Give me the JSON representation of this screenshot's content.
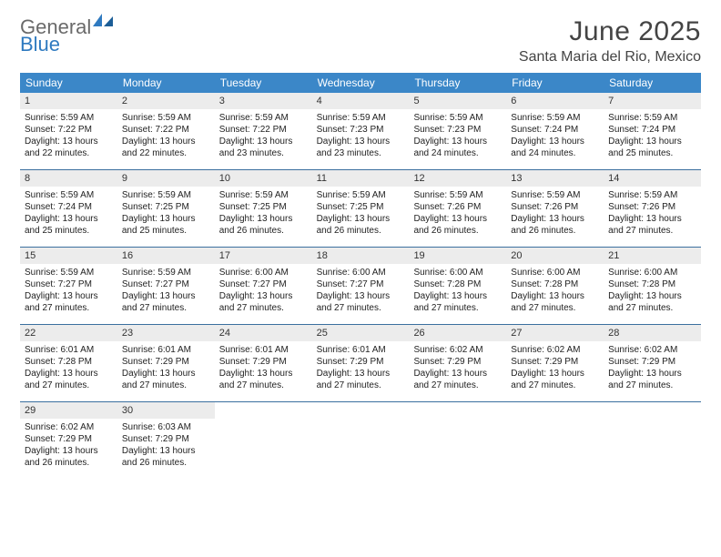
{
  "brand": {
    "general": "General",
    "blue": "Blue"
  },
  "title": "June 2025",
  "location": "Santa Maria del Rio, Mexico",
  "dayNames": [
    "Sunday",
    "Monday",
    "Tuesday",
    "Wednesday",
    "Thursday",
    "Friday",
    "Saturday"
  ],
  "colors": {
    "headerBg": "#3b87c8",
    "weekBorder": "#3b6f9f",
    "dayNumBg": "#ececec",
    "logoBlue": "#2f7ac0",
    "logoGray": "#6a6a6a"
  },
  "weeks": [
    [
      {
        "num": "1",
        "sunrise": "Sunrise: 5:59 AM",
        "sunset": "Sunset: 7:22 PM",
        "daylight": "Daylight: 13 hours and 22 minutes."
      },
      {
        "num": "2",
        "sunrise": "Sunrise: 5:59 AM",
        "sunset": "Sunset: 7:22 PM",
        "daylight": "Daylight: 13 hours and 22 minutes."
      },
      {
        "num": "3",
        "sunrise": "Sunrise: 5:59 AM",
        "sunset": "Sunset: 7:22 PM",
        "daylight": "Daylight: 13 hours and 23 minutes."
      },
      {
        "num": "4",
        "sunrise": "Sunrise: 5:59 AM",
        "sunset": "Sunset: 7:23 PM",
        "daylight": "Daylight: 13 hours and 23 minutes."
      },
      {
        "num": "5",
        "sunrise": "Sunrise: 5:59 AM",
        "sunset": "Sunset: 7:23 PM",
        "daylight": "Daylight: 13 hours and 24 minutes."
      },
      {
        "num": "6",
        "sunrise": "Sunrise: 5:59 AM",
        "sunset": "Sunset: 7:24 PM",
        "daylight": "Daylight: 13 hours and 24 minutes."
      },
      {
        "num": "7",
        "sunrise": "Sunrise: 5:59 AM",
        "sunset": "Sunset: 7:24 PM",
        "daylight": "Daylight: 13 hours and 25 minutes."
      }
    ],
    [
      {
        "num": "8",
        "sunrise": "Sunrise: 5:59 AM",
        "sunset": "Sunset: 7:24 PM",
        "daylight": "Daylight: 13 hours and 25 minutes."
      },
      {
        "num": "9",
        "sunrise": "Sunrise: 5:59 AM",
        "sunset": "Sunset: 7:25 PM",
        "daylight": "Daylight: 13 hours and 25 minutes."
      },
      {
        "num": "10",
        "sunrise": "Sunrise: 5:59 AM",
        "sunset": "Sunset: 7:25 PM",
        "daylight": "Daylight: 13 hours and 26 minutes."
      },
      {
        "num": "11",
        "sunrise": "Sunrise: 5:59 AM",
        "sunset": "Sunset: 7:25 PM",
        "daylight": "Daylight: 13 hours and 26 minutes."
      },
      {
        "num": "12",
        "sunrise": "Sunrise: 5:59 AM",
        "sunset": "Sunset: 7:26 PM",
        "daylight": "Daylight: 13 hours and 26 minutes."
      },
      {
        "num": "13",
        "sunrise": "Sunrise: 5:59 AM",
        "sunset": "Sunset: 7:26 PM",
        "daylight": "Daylight: 13 hours and 26 minutes."
      },
      {
        "num": "14",
        "sunrise": "Sunrise: 5:59 AM",
        "sunset": "Sunset: 7:26 PM",
        "daylight": "Daylight: 13 hours and 27 minutes."
      }
    ],
    [
      {
        "num": "15",
        "sunrise": "Sunrise: 5:59 AM",
        "sunset": "Sunset: 7:27 PM",
        "daylight": "Daylight: 13 hours and 27 minutes."
      },
      {
        "num": "16",
        "sunrise": "Sunrise: 5:59 AM",
        "sunset": "Sunset: 7:27 PM",
        "daylight": "Daylight: 13 hours and 27 minutes."
      },
      {
        "num": "17",
        "sunrise": "Sunrise: 6:00 AM",
        "sunset": "Sunset: 7:27 PM",
        "daylight": "Daylight: 13 hours and 27 minutes."
      },
      {
        "num": "18",
        "sunrise": "Sunrise: 6:00 AM",
        "sunset": "Sunset: 7:27 PM",
        "daylight": "Daylight: 13 hours and 27 minutes."
      },
      {
        "num": "19",
        "sunrise": "Sunrise: 6:00 AM",
        "sunset": "Sunset: 7:28 PM",
        "daylight": "Daylight: 13 hours and 27 minutes."
      },
      {
        "num": "20",
        "sunrise": "Sunrise: 6:00 AM",
        "sunset": "Sunset: 7:28 PM",
        "daylight": "Daylight: 13 hours and 27 minutes."
      },
      {
        "num": "21",
        "sunrise": "Sunrise: 6:00 AM",
        "sunset": "Sunset: 7:28 PM",
        "daylight": "Daylight: 13 hours and 27 minutes."
      }
    ],
    [
      {
        "num": "22",
        "sunrise": "Sunrise: 6:01 AM",
        "sunset": "Sunset: 7:28 PM",
        "daylight": "Daylight: 13 hours and 27 minutes."
      },
      {
        "num": "23",
        "sunrise": "Sunrise: 6:01 AM",
        "sunset": "Sunset: 7:29 PM",
        "daylight": "Daylight: 13 hours and 27 minutes."
      },
      {
        "num": "24",
        "sunrise": "Sunrise: 6:01 AM",
        "sunset": "Sunset: 7:29 PM",
        "daylight": "Daylight: 13 hours and 27 minutes."
      },
      {
        "num": "25",
        "sunrise": "Sunrise: 6:01 AM",
        "sunset": "Sunset: 7:29 PM",
        "daylight": "Daylight: 13 hours and 27 minutes."
      },
      {
        "num": "26",
        "sunrise": "Sunrise: 6:02 AM",
        "sunset": "Sunset: 7:29 PM",
        "daylight": "Daylight: 13 hours and 27 minutes."
      },
      {
        "num": "27",
        "sunrise": "Sunrise: 6:02 AM",
        "sunset": "Sunset: 7:29 PM",
        "daylight": "Daylight: 13 hours and 27 minutes."
      },
      {
        "num": "28",
        "sunrise": "Sunrise: 6:02 AM",
        "sunset": "Sunset: 7:29 PM",
        "daylight": "Daylight: 13 hours and 27 minutes."
      }
    ],
    [
      {
        "num": "29",
        "sunrise": "Sunrise: 6:02 AM",
        "sunset": "Sunset: 7:29 PM",
        "daylight": "Daylight: 13 hours and 26 minutes."
      },
      {
        "num": "30",
        "sunrise": "Sunrise: 6:03 AM",
        "sunset": "Sunset: 7:29 PM",
        "daylight": "Daylight: 13 hours and 26 minutes."
      },
      {
        "empty": true
      },
      {
        "empty": true
      },
      {
        "empty": true
      },
      {
        "empty": true
      },
      {
        "empty": true
      }
    ]
  ]
}
